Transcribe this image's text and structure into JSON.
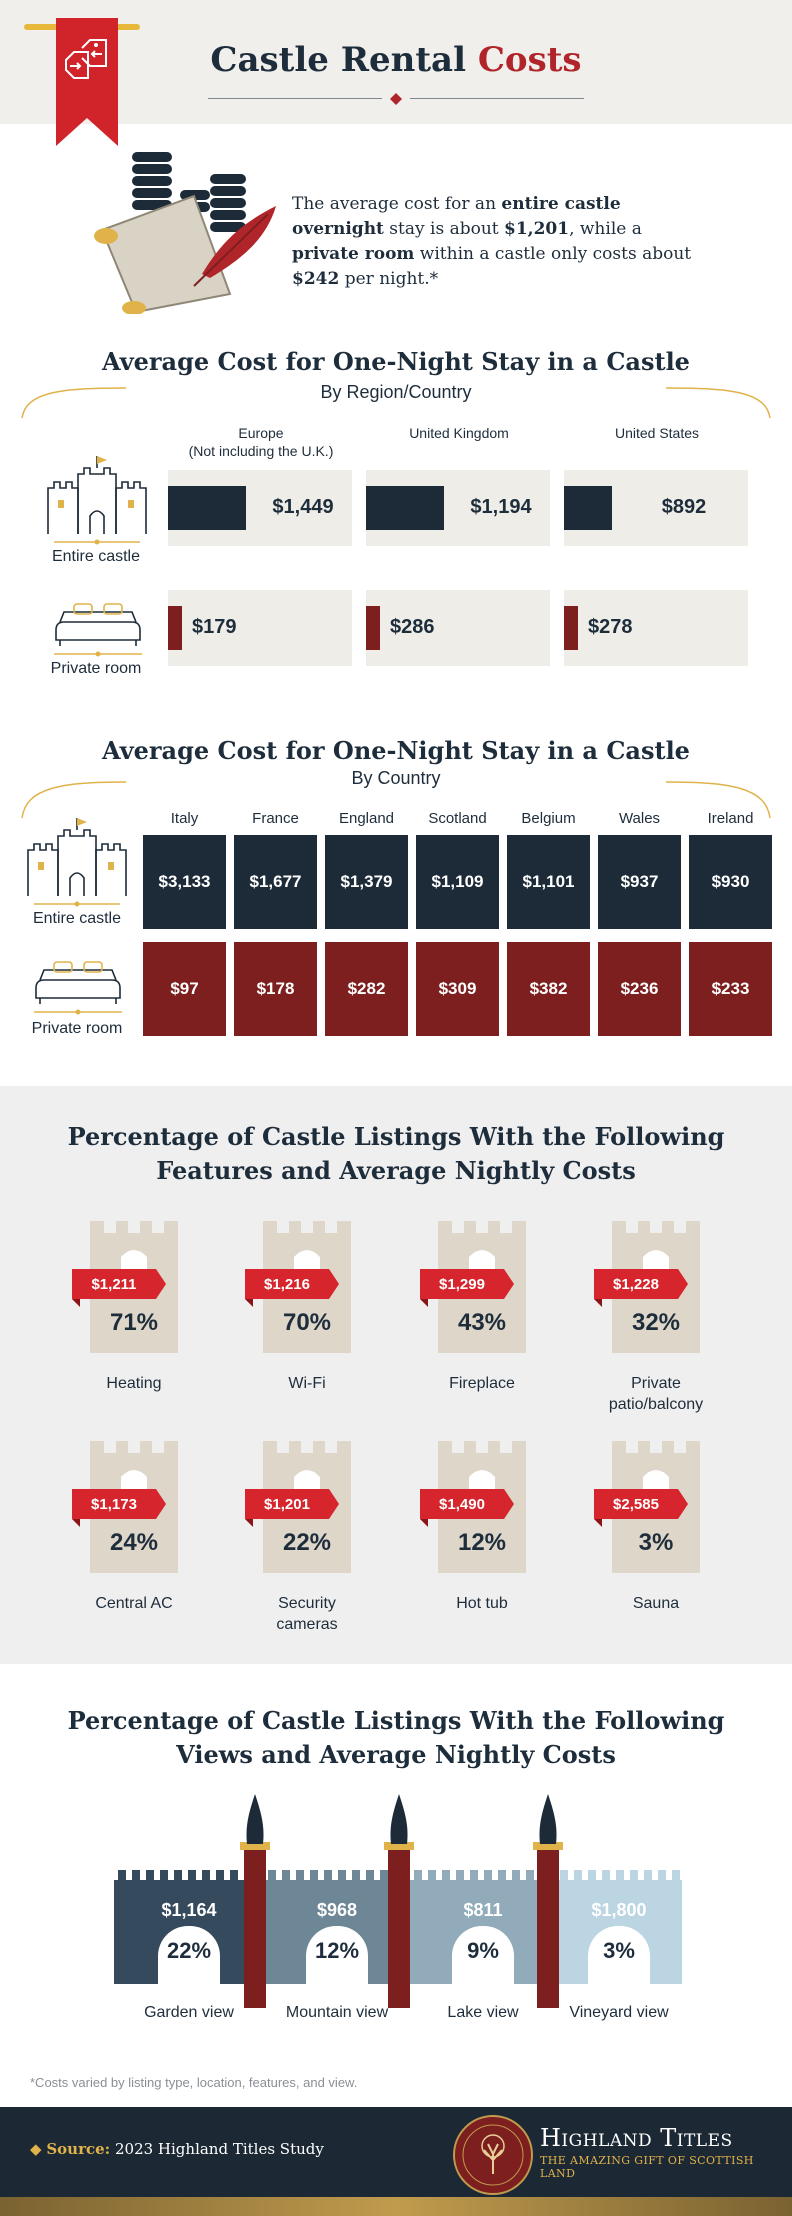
{
  "header": {
    "title_main": "Castle Rental",
    "title_accent": "Costs"
  },
  "intro": {
    "p1": "The average cost for an ",
    "b1": "entire castle overnight",
    "p2": " stay is about ",
    "b2": "$1,201",
    "p3": ", while a ",
    "b3": "private room",
    "p4": " within a castle only costs about ",
    "b4": "$242",
    "p5": " per night.*"
  },
  "region_section": {
    "title": "Average Cost for One-Night Stay in a Castle",
    "subtitle": "By Region/Country",
    "columns": [
      {
        "line1": "Europe",
        "line2": "(Not including the U.K.)"
      },
      {
        "line1": "United Kingdom",
        "line2": ""
      },
      {
        "line1": "United States",
        "line2": ""
      }
    ],
    "rows": [
      {
        "label": "Entire castle",
        "values": [
          "$1,449",
          "$1,194",
          "$892"
        ]
      },
      {
        "label": "Private room",
        "values": [
          "$179",
          "$286",
          "$278"
        ]
      }
    ]
  },
  "country_section": {
    "title": "Average Cost for One-Night Stay in a Castle",
    "subtitle": "By Country",
    "countries": [
      "Italy",
      "France",
      "England",
      "Scotland",
      "Belgium",
      "Wales",
      "Ireland"
    ],
    "rows": [
      {
        "label": "Entire castle",
        "values": [
          "$3,133",
          "$1,677",
          "$1,379",
          "$1,109",
          "$1,101",
          "$937",
          "$930"
        ]
      },
      {
        "label": "Private room",
        "values": [
          "$97",
          "$178",
          "$282",
          "$309",
          "$382",
          "$236",
          "$233"
        ]
      }
    ]
  },
  "features_section": {
    "title_line1": "Percentage of Castle Listings With the Following",
    "title_line2": "Features and Average Nightly Costs",
    "items": [
      {
        "price": "$1,211",
        "pct": "71%",
        "label1": "Heating",
        "label2": ""
      },
      {
        "price": "$1,216",
        "pct": "70%",
        "label1": "Wi-Fi",
        "label2": ""
      },
      {
        "price": "$1,299",
        "pct": "43%",
        "label1": "Fireplace",
        "label2": ""
      },
      {
        "price": "$1,228",
        "pct": "32%",
        "label1": "Private",
        "label2": "patio/balcony"
      },
      {
        "price": "$1,173",
        "pct": "24%",
        "label1": "Central AC",
        "label2": ""
      },
      {
        "price": "$1,201",
        "pct": "22%",
        "label1": "Security",
        "label2": "cameras"
      },
      {
        "price": "$1,490",
        "pct": "12%",
        "label1": "Hot tub",
        "label2": ""
      },
      {
        "price": "$2,585",
        "pct": "3%",
        "label1": "Sauna",
        "label2": ""
      }
    ]
  },
  "views_section": {
    "title_line1": "Percentage of Castle Listings With the Following",
    "title_line2": "Views and Average Nightly Costs",
    "items": [
      {
        "price": "$1,164",
        "pct": "22%",
        "label": "Garden view",
        "color": "#354a5c"
      },
      {
        "price": "$968",
        "pct": "12%",
        "label": "Mountain view",
        "color": "#6e8797"
      },
      {
        "price": "$811",
        "pct": "9%",
        "label": "Lake view",
        "color": "#92abbb"
      },
      {
        "price": "$1,800",
        "pct": "3%",
        "label": "Vineyard view",
        "color": "#bcd5e3"
      }
    ]
  },
  "footnote": "*Costs varied by listing type, location, features, and view.",
  "footer": {
    "source_label": "Source:",
    "source_text": "2023 Highland Titles Study",
    "brand_name": "Highland Titles",
    "brand_tagline": "The Amazing Gift of Scottish Land"
  },
  "colors": {
    "navy": "#1d2b38",
    "maroon": "#7e1f1f",
    "red_accent": "#d6252c",
    "gold": "#e0b24a",
    "cream": "#efede8"
  }
}
